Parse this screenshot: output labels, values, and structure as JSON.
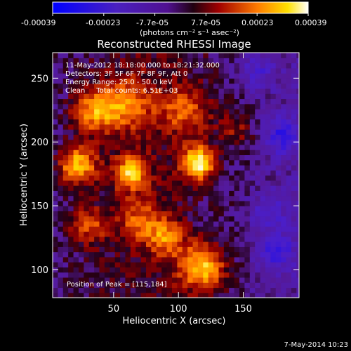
{
  "colorbar": {
    "tick_labels": [
      "-0.00039",
      "-0.00023",
      "-7.7e-05",
      "7.7e-05",
      "0.00023",
      "0.00039"
    ],
    "unit_label": "(photons cm⁻² s⁻¹ asec⁻²)",
    "range": [
      -0.00039,
      0.00039
    ]
  },
  "chart_data": {
    "type": "heatmap",
    "title": "Reconstructed RHESSI Image",
    "xlabel": "Heliocentric X (arcsec)",
    "ylabel": "Heliocentric Y (arcsec)",
    "xlim": [
      3,
      193
    ],
    "ylim": [
      78,
      270
    ],
    "x_ticks": [
      50,
      100,
      150
    ],
    "y_ticks": [
      100,
      150,
      200,
      250
    ],
    "peak": [
      115,
      184
    ],
    "sources": [
      {
        "x": 115,
        "y": 184,
        "intensity": 1.0,
        "sigma": 9
      },
      {
        "x": 22,
        "y": 182,
        "intensity": 0.8,
        "sigma": 10
      },
      {
        "x": 63,
        "y": 176,
        "intensity": 0.78,
        "sigma": 9
      },
      {
        "x": 118,
        "y": 102,
        "intensity": 0.8,
        "sigma": 12
      },
      {
        "x": 35,
        "y": 225,
        "intensity": 0.62,
        "sigma": 12
      },
      {
        "x": 90,
        "y": 125,
        "intensity": 0.55,
        "sigma": 10
      },
      {
        "x": 60,
        "y": 230,
        "intensity": 0.5,
        "sigma": 14
      },
      {
        "x": 30,
        "y": 135,
        "intensity": 0.45,
        "sigma": 10
      },
      {
        "x": 105,
        "y": 225,
        "intensity": 0.45,
        "sigma": 14
      },
      {
        "x": 70,
        "y": 140,
        "intensity": 0.42,
        "sigma": 12
      },
      {
        "x": 145,
        "y": 210,
        "intensity": 0.3,
        "sigma": 10
      }
    ],
    "negative_sources": [
      {
        "x": 180,
        "y": 205,
        "intensity": -0.45,
        "sigma": 10
      },
      {
        "x": 175,
        "y": 115,
        "intensity": -0.4,
        "sigma": 10
      },
      {
        "x": 170,
        "y": 145,
        "intensity": -0.3,
        "sigma": 10
      },
      {
        "x": 160,
        "y": 255,
        "intensity": -0.3,
        "sigma": 10
      }
    ]
  },
  "annotations": {
    "line1": "11-May-2012 18:18:00.000 to 18:21:32.000",
    "line2": "Detectors: 3F 5F 6F 7F 8F 9F, Att 0",
    "line3": "Energy Range: 25.0 - 50.0 keV",
    "line4": "Clean     Total counts: 6.51E+03",
    "peak_text": "Position of Peak = [115,184]"
  },
  "footer": {
    "timestamp": "7-May-2014 10:23"
  }
}
